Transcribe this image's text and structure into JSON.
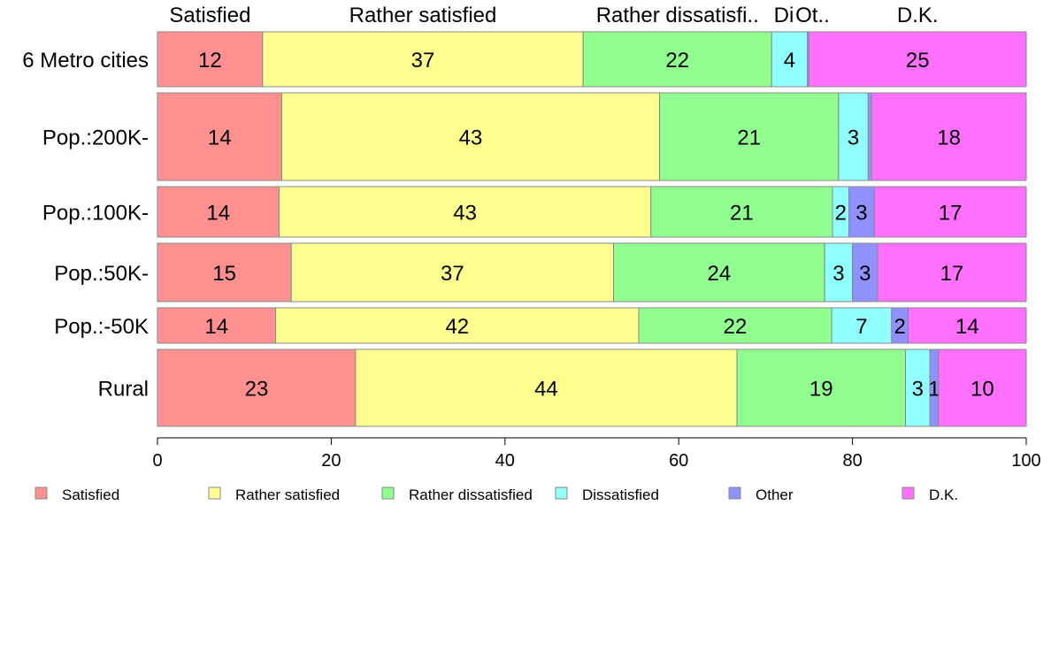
{
  "chart_data": {
    "type": "bar",
    "orientation": "horizontal",
    "stacked": true,
    "title": "",
    "xlabel": "",
    "ylabel": "",
    "xlim": [
      0,
      100
    ],
    "xticks": [
      0,
      20,
      40,
      60,
      80,
      100
    ],
    "grid": false,
    "legend_position": "bottom",
    "categories": [
      "6 Metro cities",
      "Pop.:200K-",
      "Pop.:100K-",
      "Pop.:50K-",
      "Pop.:-50K",
      "Rural"
    ],
    "series": [
      {
        "name": "Satisfied",
        "color": "#ff9090",
        "values": [
          12.1,
          14.3,
          14.0,
          15.4,
          13.6,
          22.8
        ],
        "labels": [
          "12",
          "14",
          "14",
          "15",
          "14",
          "23"
        ]
      },
      {
        "name": "Rather satisfied",
        "color": "#ffff90",
        "values": [
          36.9,
          43.5,
          42.8,
          37.1,
          41.8,
          43.9
        ],
        "labels": [
          "37",
          "43",
          "43",
          "37",
          "42",
          "44"
        ]
      },
      {
        "name": "Rather dissatisfied",
        "color": "#90ff90",
        "values": [
          21.7,
          20.6,
          20.9,
          24.3,
          22.2,
          19.4
        ],
        "labels": [
          "22",
          "21",
          "21",
          "24",
          "22",
          "19"
        ]
      },
      {
        "name": "Dissatisfied",
        "color": "#90ffff",
        "values": [
          4.1,
          3.4,
          1.9,
          3.2,
          6.9,
          2.8
        ],
        "labels": [
          "4",
          "3",
          "2",
          "3",
          "7",
          "3"
        ]
      },
      {
        "name": "Other",
        "color": "#9090ff",
        "values": [
          0.2,
          0.4,
          2.9,
          2.9,
          1.9,
          1.0
        ],
        "labels": [
          "",
          "",
          "3",
          "3",
          "2",
          "1"
        ]
      },
      {
        "name": "D.K.",
        "color": "#ff70ff",
        "values": [
          25.0,
          17.8,
          17.5,
          17.1,
          13.6,
          10.1
        ],
        "labels": [
          "25",
          "18",
          "17",
          "17",
          "14",
          "10"
        ]
      }
    ],
    "top_labels": [
      "Satisfied",
      "Rather satisfied",
      "Rather dissatisfi..",
      "Di",
      "Ot..",
      "D.K."
    ],
    "legend": [
      "Satisfied",
      "Rather satisfied",
      "Rather dissatisfied",
      "Dissatisfied",
      "Other",
      "D.K."
    ]
  }
}
